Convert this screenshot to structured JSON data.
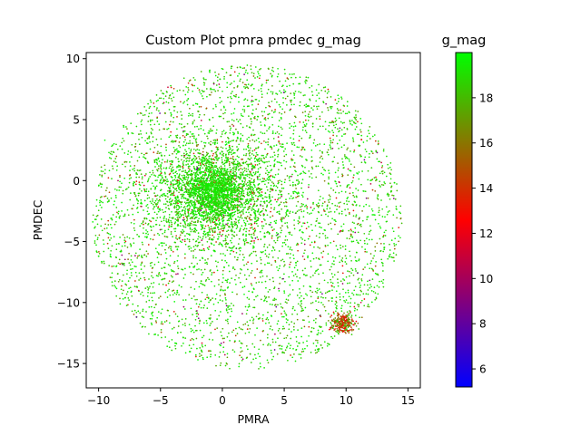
{
  "chart_data": {
    "type": "scatter",
    "title": "Custom Plot pmra pmdec g_mag",
    "xlabel": "PMRA",
    "ylabel": "PMDEC",
    "xlim": [
      -11.0,
      16.0
    ],
    "ylim": [
      -17.0,
      10.5
    ],
    "xticks": [
      -10,
      -5,
      0,
      5,
      10,
      15
    ],
    "yticks": [
      -15,
      -10,
      -5,
      0,
      5,
      10
    ],
    "xtick_labels": [
      "−10",
      "−5",
      "0",
      "5",
      "10",
      "15"
    ],
    "ytick_labels": [
      "−15",
      "−10",
      "−5",
      "0",
      "5",
      "10"
    ],
    "grid": false,
    "colorbar": {
      "label": "g_mag",
      "range": [
        5.2,
        20.0
      ],
      "ticks": [
        6,
        8,
        10,
        12,
        14,
        16,
        18
      ],
      "tick_labels": [
        "6",
        "8",
        "10",
        "12",
        "14",
        "16",
        "18"
      ],
      "colormap": [
        "#0000ff",
        "#ff0000",
        "#00ff00"
      ]
    },
    "distribution": {
      "field_center": [
        2.0,
        -3.0
      ],
      "field_radius": 12.5,
      "dense_cluster_center": [
        -0.7,
        -0.9
      ],
      "secondary_cluster_center": [
        9.8,
        -11.7
      ],
      "points_shown": "several thousand stars"
    },
    "points": [
      {
        "x": -0.5,
        "y": -1.0,
        "c": 19.5
      },
      {
        "x": 0.2,
        "y": -0.3,
        "c": 19.0
      },
      {
        "x": -1.2,
        "y": -1.8,
        "c": 18.8
      },
      {
        "x": 1.0,
        "y": -2.0,
        "c": 19.2
      },
      {
        "x": -2.0,
        "y": 0.5,
        "c": 18.5
      },
      {
        "x": 3.0,
        "y": -1.0,
        "c": 18.9
      },
      {
        "x": 2.5,
        "y": -4.0,
        "c": 18.0
      },
      {
        "x": -3.5,
        "y": -3.0,
        "c": 17.5
      },
      {
        "x": 5.5,
        "y": -6.0,
        "c": 18.7
      },
      {
        "x": -6.0,
        "y": -6.0,
        "c": 15.0
      },
      {
        "x": 8.0,
        "y": 2.0,
        "c": 16.0
      },
      {
        "x": -8.0,
        "y": -9.0,
        "c": 16.5
      },
      {
        "x": 12.0,
        "y": -6.0,
        "c": 17.0
      },
      {
        "x": 4.0,
        "y": 6.5,
        "c": 18.2
      },
      {
        "x": -7.0,
        "y": 3.0,
        "c": 17.8
      },
      {
        "x": 13.5,
        "y": -2.5,
        "c": 18.4
      },
      {
        "x": 2.0,
        "y": -14.5,
        "c": 16.8
      },
      {
        "x": 9.8,
        "y": -11.7,
        "c": 14.5
      },
      {
        "x": 9.6,
        "y": -11.5,
        "c": 15.5
      },
      {
        "x": 10.1,
        "y": -11.9,
        "c": 13.0
      },
      {
        "x": 9.5,
        "y": -4.2,
        "c": 10.2
      },
      {
        "x": 11.2,
        "y": -10.0,
        "c": 11.0
      },
      {
        "x": 9.5,
        "y": 4.3,
        "c": 8.5
      },
      {
        "x": 3.0,
        "y": 8.4,
        "c": 13.5
      },
      {
        "x": 0.0,
        "y": 4.0,
        "c": 18.6
      },
      {
        "x": -4.5,
        "y": -11.5,
        "c": 16.2
      },
      {
        "x": 7.0,
        "y": -12.0,
        "c": 14.0
      },
      {
        "x": 14.5,
        "y": -3.5,
        "c": 18.1
      }
    ]
  }
}
